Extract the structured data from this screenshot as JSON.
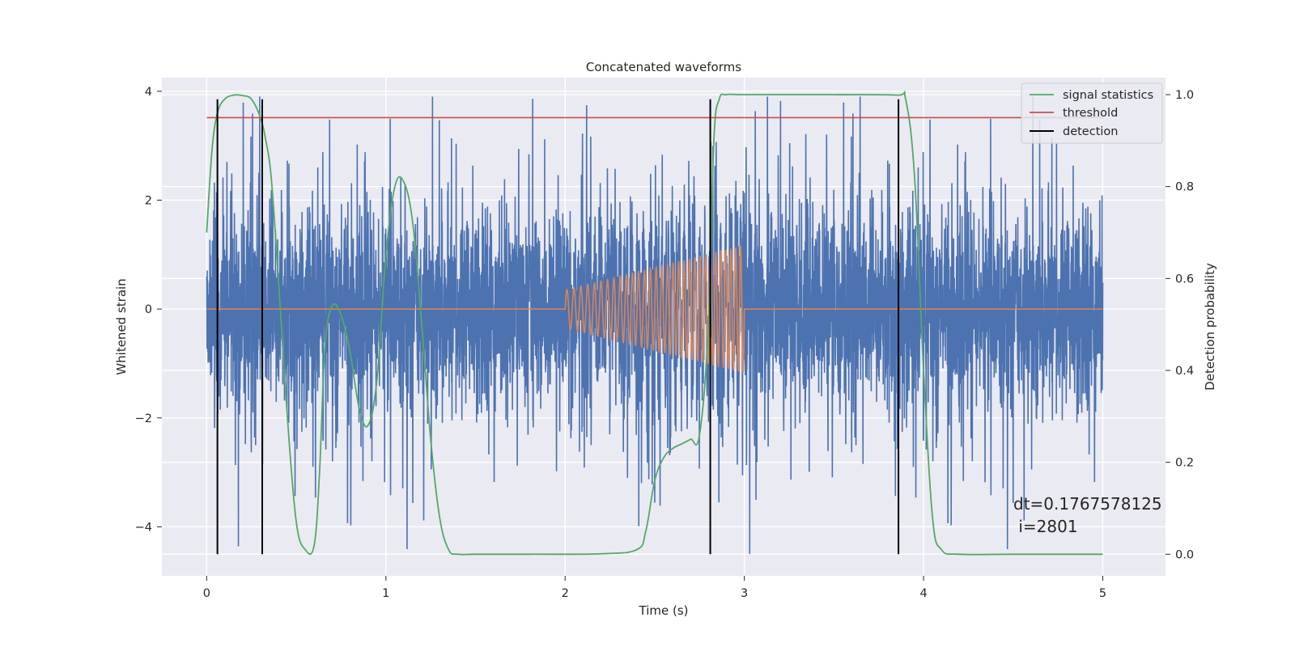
{
  "chart_data": {
    "type": "line",
    "title": "Concatenated waveforms",
    "xlabel": "Time (s)",
    "ylabel": "Whitened strain",
    "y2label": "Detection probability",
    "xlim": [
      -0.25,
      5.35
    ],
    "ylim": [
      -4.9,
      4.25
    ],
    "y2lim": [
      -0.047,
      1.037
    ],
    "xticks": [
      0,
      1,
      2,
      3,
      4,
      5
    ],
    "yticks": [
      -4,
      -2,
      0,
      2,
      4
    ],
    "y2ticks": [
      0.0,
      0.2,
      0.4,
      0.6,
      0.8,
      1.0
    ],
    "ytick_labels": [
      "−4",
      "−2",
      "0",
      "2",
      "4"
    ],
    "y2tick_labels": [
      "0.0",
      "0.2",
      "0.4",
      "0.6",
      "0.8",
      "1.0"
    ],
    "grid": true,
    "legend_position": "top-right",
    "colors": {
      "strain": "#4c72b0",
      "template": "#dd8452",
      "signal_statistics": "#55a868",
      "threshold": "#c44e52",
      "detection": "#000000",
      "axes_bg": "#eaeaf2",
      "grid": "#ffffff",
      "text": "#262626"
    },
    "series": [
      {
        "name": "signal statistics",
        "axis": "right",
        "x": [
          0.0,
          0.03,
          0.06,
          0.1,
          0.15,
          0.2,
          0.25,
          0.3,
          0.33,
          0.36,
          0.4,
          0.45,
          0.5,
          0.55,
          0.6,
          0.63,
          0.66,
          0.7,
          0.75,
          0.8,
          0.85,
          0.9,
          0.95,
          1.0,
          1.05,
          1.1,
          1.15,
          1.2,
          1.25,
          1.3,
          1.35,
          1.4,
          1.5,
          1.8,
          2.2,
          2.4,
          2.45,
          2.5,
          2.55,
          2.6,
          2.65,
          2.7,
          2.75,
          2.8,
          2.83,
          2.86,
          2.9,
          3.0,
          3.5,
          3.85,
          3.9,
          3.95,
          4.0,
          4.05,
          4.1,
          4.2,
          4.5,
          5.0
        ],
        "values": [
          0.7,
          0.88,
          0.96,
          0.99,
          0.999,
          0.998,
          0.99,
          0.95,
          0.9,
          0.82,
          0.6,
          0.3,
          0.07,
          0.01,
          0.02,
          0.18,
          0.45,
          0.54,
          0.52,
          0.44,
          0.32,
          0.28,
          0.38,
          0.65,
          0.8,
          0.81,
          0.72,
          0.5,
          0.25,
          0.08,
          0.01,
          0.0,
          0.0,
          0.0,
          0.001,
          0.01,
          0.05,
          0.16,
          0.21,
          0.23,
          0.24,
          0.25,
          0.26,
          0.5,
          0.9,
          0.99,
          1.0,
          1.0,
          1.0,
          0.999,
          0.99,
          0.82,
          0.4,
          0.08,
          0.01,
          0.0,
          0.0,
          0.0
        ]
      },
      {
        "name": "threshold",
        "axis": "right",
        "x": [
          0,
          5
        ],
        "values": [
          0.95,
          0.95
        ]
      },
      {
        "name": "detection",
        "axis": "right",
        "x": [
          0.06,
          0.31,
          2.81,
          3.86
        ],
        "values": [
          [
            0.0,
            0.99
          ],
          [
            0.0,
            0.99
          ],
          [
            0.0,
            0.99
          ],
          [
            0.0,
            0.99
          ]
        ]
      }
    ],
    "annotation": {
      "line1": "dt=0.1767578125",
      "line2": " i=2801"
    }
  }
}
